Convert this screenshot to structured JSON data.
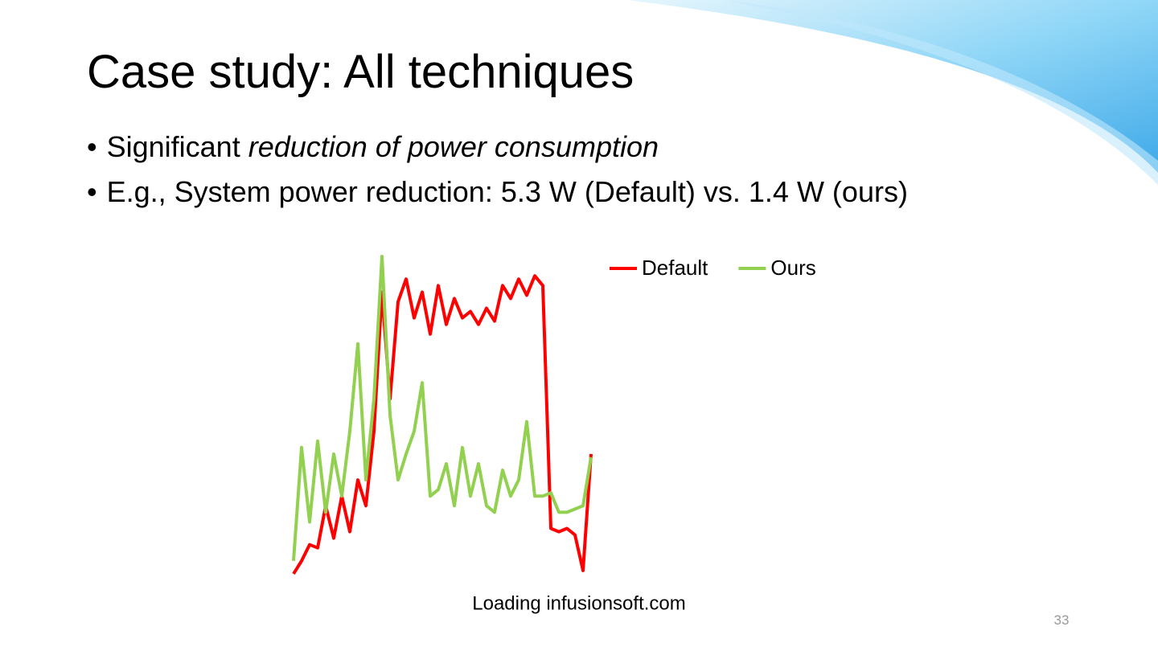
{
  "slide": {
    "title": "Case study: All techniques",
    "bullets": [
      {
        "text": "Significant",
        "emphasis": "reduction of power consumption"
      },
      {
        "text": "E.g., System power reduction: 5.3 W (Default) vs. 1.4 W (ours)"
      }
    ],
    "page_number": "33"
  },
  "chart_data": {
    "type": "line",
    "x_label": "Loading infusionsoft.com",
    "x": [
      0,
      2,
      4,
      6,
      8,
      10,
      12,
      14,
      16,
      18,
      20,
      22,
      24,
      26,
      28,
      30,
      32,
      34,
      36,
      38,
      40,
      42,
      44,
      46,
      48,
      50,
      52,
      54,
      56,
      58,
      60,
      62,
      64,
      66,
      68,
      70,
      72,
      74
    ],
    "xlim": [
      0,
      74
    ],
    "ylim": [
      0,
      100
    ],
    "legend": "top-right",
    "series": [
      {
        "name": "Default",
        "color": "#ff0000",
        "values": [
          1,
          5,
          10,
          9,
          22,
          12,
          25,
          14,
          30,
          22,
          45,
          88,
          55,
          85,
          92,
          80,
          88,
          75,
          90,
          78,
          86,
          80,
          82,
          78,
          83,
          79,
          90,
          86,
          92,
          87,
          93,
          90,
          15,
          14,
          15,
          13,
          2,
          38
        ]
      },
      {
        "name": "Ours",
        "color": "#92d050",
        "values": [
          5,
          40,
          17,
          42,
          20,
          38,
          25,
          45,
          72,
          30,
          55,
          99,
          50,
          30,
          38,
          45,
          60,
          25,
          27,
          35,
          22,
          40,
          25,
          35,
          22,
          20,
          33,
          25,
          30,
          48,
          25,
          25,
          26,
          20,
          20,
          21,
          22,
          37
        ]
      }
    ]
  }
}
